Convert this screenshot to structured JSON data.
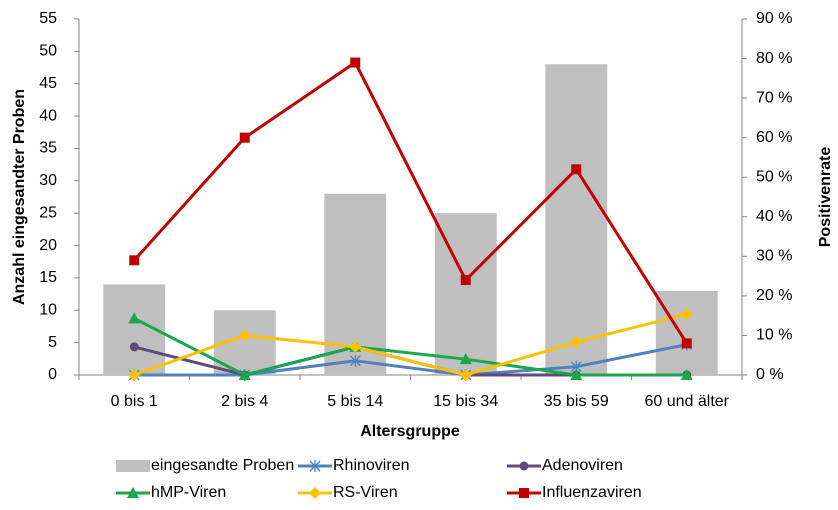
{
  "chart_data": {
    "type": "bar-line",
    "categories": [
      "0 bis 1",
      "2 bis 4",
      "5 bis 14",
      "15 bis 34",
      "35 bis 59",
      "60 und älter"
    ],
    "xlabel": "Altersgruppe",
    "ylabel": "Anzahl eingesandter Proben",
    "y2label": "Positivenrate",
    "ylim": [
      0,
      55
    ],
    "yticks": [
      0,
      5,
      10,
      15,
      20,
      25,
      30,
      35,
      40,
      45,
      50,
      55
    ],
    "y2lim": [
      0,
      90
    ],
    "y2ticks": [
      {
        "value": 0,
        "label": "0 %"
      },
      {
        "value": 10,
        "label": "10 %"
      },
      {
        "value": 20,
        "label": "20 %"
      },
      {
        "value": 30,
        "label": "30 %"
      },
      {
        "value": 40,
        "label": "40 %"
      },
      {
        "value": 50,
        "label": "50 %"
      },
      {
        "value": 60,
        "label": "60 %"
      },
      {
        "value": 70,
        "label": "70 %"
      },
      {
        "value": 80,
        "label": "80 %"
      },
      {
        "value": 90,
        "label": "90 %"
      }
    ],
    "series": [
      {
        "name": "eingesandte Proben",
        "kind": "bar",
        "color": "#bfbfbf",
        "values": [
          14,
          10,
          28,
          25,
          48,
          13
        ]
      },
      {
        "name": "Rhinoviren",
        "kind": "line",
        "marker": "star",
        "axis": "y2",
        "color": "#4f81bd",
        "values": [
          0,
          0,
          3.6,
          0,
          2.1,
          7.7
        ]
      },
      {
        "name": "Adenoviren",
        "kind": "line",
        "marker": "circle",
        "axis": "y2",
        "color": "#604a7b",
        "values": [
          7.1,
          0,
          7.1,
          0,
          0,
          0
        ]
      },
      {
        "name": "hMP-Viren",
        "kind": "line",
        "marker": "triangle",
        "axis": "y2",
        "color": "#1aa64a",
        "values": [
          14.3,
          0,
          7.1,
          4,
          0,
          0
        ]
      },
      {
        "name": "RS-Viren",
        "kind": "line",
        "marker": "diamond",
        "axis": "y2",
        "color": "#ffc000",
        "values": [
          0,
          10,
          7.1,
          0,
          8.3,
          15.4
        ]
      },
      {
        "name": "Influenzaviren",
        "kind": "line",
        "marker": "square",
        "axis": "y2",
        "color": "#c00000",
        "values": [
          29,
          60,
          79,
          24,
          52,
          8
        ]
      }
    ]
  }
}
